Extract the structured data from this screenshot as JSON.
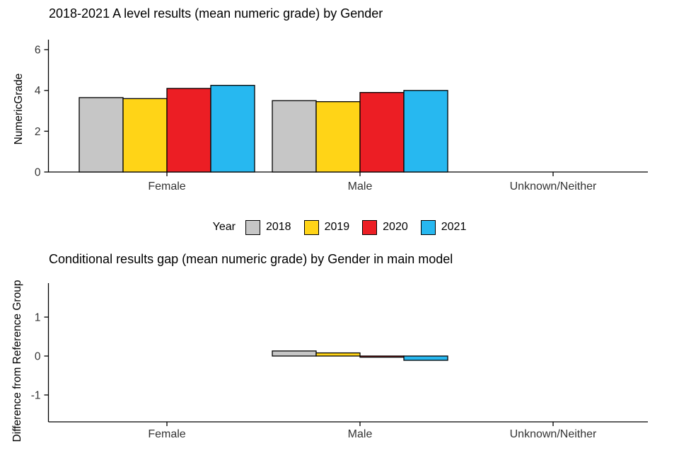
{
  "page": {
    "background": "#ffffff"
  },
  "legend": {
    "title": "Year",
    "items": [
      {
        "label": "2018",
        "color": "#C6C6C6"
      },
      {
        "label": "2019",
        "color": "#FFD417"
      },
      {
        "label": "2020",
        "color": "#EC1E24"
      },
      {
        "label": "2021",
        "color": "#27B8F0"
      }
    ]
  },
  "chart_data": [
    {
      "id": "results",
      "type": "bar",
      "title": "2018-2021 A level results (mean numeric grade) by Gender",
      "ylabel": "NumericGrade",
      "xlabel": "",
      "categories": [
        "Female",
        "Male",
        "Unknown/Neither"
      ],
      "series": [
        {
          "name": "2018",
          "color": "#C6C6C6",
          "values": [
            3.65,
            3.5,
            0
          ]
        },
        {
          "name": "2019",
          "color": "#FFD417",
          "values": [
            3.6,
            3.45,
            0
          ]
        },
        {
          "name": "2020",
          "color": "#EC1E24",
          "values": [
            4.1,
            3.9,
            0
          ]
        },
        {
          "name": "2021",
          "color": "#27B8F0",
          "values": [
            4.25,
            4.0,
            0
          ]
        }
      ],
      "yticks": [
        0,
        2,
        4,
        6
      ],
      "ylim": [
        0,
        6.5
      ],
      "grid": false,
      "legend_position": "bottom"
    },
    {
      "id": "gap",
      "type": "bar",
      "title": "Conditional results gap (mean numeric grade) by Gender in main model",
      "ylabel": "Difference from Reference Group",
      "xlabel": "",
      "categories": [
        "Female",
        "Male",
        "Unknown/Neither"
      ],
      "series": [
        {
          "name": "2018",
          "color": "#C6C6C6",
          "values": [
            0,
            0.13,
            0
          ]
        },
        {
          "name": "2019",
          "color": "#FFD417",
          "values": [
            0,
            0.08,
            0
          ]
        },
        {
          "name": "2020",
          "color": "#EC1E24",
          "values": [
            0,
            -0.03,
            0
          ]
        },
        {
          "name": "2021",
          "color": "#27B8F0",
          "values": [
            0,
            -0.11,
            0
          ]
        }
      ],
      "yticks": [
        -1,
        0,
        1
      ],
      "ylim": [
        -1.7,
        1.7
      ],
      "grid": false
    }
  ]
}
